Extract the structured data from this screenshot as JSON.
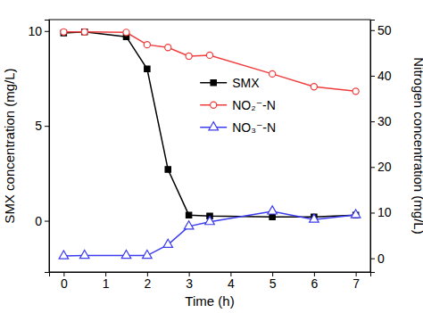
{
  "chart_data": {
    "type": "line",
    "x_label": "Time (h)",
    "y_label": "SMX concentration (mg/L)",
    "y2_label": "Nitrogen concentration (mg/L)",
    "x": [
      0,
      0.5,
      1.5,
      2,
      2.5,
      3,
      3.5,
      5,
      6,
      7
    ],
    "xlim": [
      -0.35,
      7.35
    ],
    "xticks": [
      0,
      1,
      2,
      3,
      4,
      5,
      6,
      7
    ],
    "ylim": [
      -2.7,
      10.6
    ],
    "yticks": [
      0,
      5,
      10
    ],
    "y2lim": [
      -3,
      52.3
    ],
    "y2ticks": [
      0,
      10,
      20,
      30,
      40,
      50
    ],
    "legend": "center",
    "grid": false,
    "series": [
      {
        "name": "SMX",
        "color": "#000000",
        "marker": "square",
        "line_style": "solid",
        "values": [
          9.9,
          9.95,
          9.7,
          8.0,
          2.7,
          0.3,
          0.25,
          0.2,
          0.2,
          0.3
        ]
      },
      {
        "name": "NO₂⁻-N",
        "color": "#f03c3c",
        "marker": "circle-open",
        "line_style": "solid",
        "axis": "y2",
        "values": [
          49.6,
          49.6,
          49.5,
          46.8,
          46.2,
          44.3,
          44.5,
          40.4,
          37.6,
          36.6
        ]
      },
      {
        "name": "NO₃⁻-N",
        "color": "#3c3cf0",
        "marker": "triangle-open",
        "line_style": "solid",
        "axis": "y2",
        "values": [
          0.5,
          0.6,
          0.6,
          0.6,
          3.0,
          7.0,
          8.0,
          10.3,
          8.5,
          9.5
        ]
      }
    ]
  }
}
